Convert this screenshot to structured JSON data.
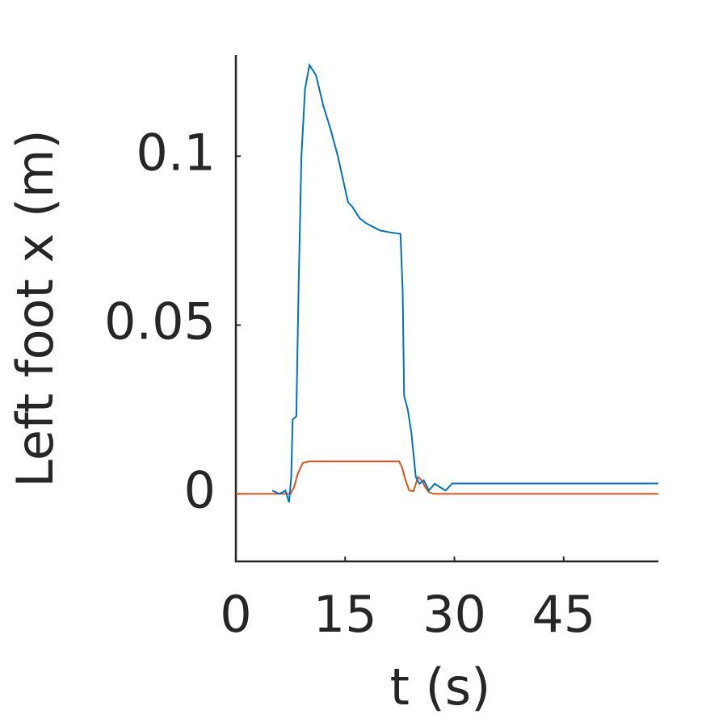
{
  "chart_data": {
    "type": "line",
    "xlabel": "t (s)",
    "ylabel": "Left foot x (m)",
    "xlim": [
      0,
      58
    ],
    "ylim": [
      -0.02,
      0.13
    ],
    "xticks": [
      0,
      15,
      30,
      45
    ],
    "yticks": [
      0,
      0.05,
      0.1
    ],
    "series": [
      {
        "color": "#0072bd",
        "x": [
          5,
          6,
          6.8,
          7.3,
          7.6,
          7.8,
          8.3,
          8.6,
          9,
          9.5,
          10.1,
          11,
          12,
          13,
          14,
          15.4,
          16,
          17,
          18,
          19.8,
          21,
          22.6,
          22.9,
          23.1,
          23.6,
          24.1,
          24.7,
          25.2,
          25.8,
          26.5,
          27.3,
          28,
          28.8,
          29.7,
          58
        ],
        "values": [
          0.001,
          0,
          0.001,
          -0.0025,
          0.005,
          0.022,
          0.023,
          0.06,
          0.1,
          0.12,
          0.127,
          0.124,
          0.115,
          0.108,
          0.1,
          0.0864,
          0.085,
          0.0816,
          0.08,
          0.078,
          0.0775,
          0.077,
          0.06,
          0.029,
          0.025,
          0.018,
          0.005,
          0.003,
          0.004,
          0.001,
          0.003,
          0.002,
          0.001,
          0.0031,
          0.0031
        ]
      },
      {
        "color": "#d95319",
        "x": [
          0,
          7.5,
          8,
          8.5,
          9.2,
          10,
          22.4,
          22.8,
          23.3,
          23.8,
          24.4,
          25,
          25.5,
          26,
          26.5,
          27.2,
          58
        ],
        "values": [
          0,
          0,
          0.002,
          0.006,
          0.0092,
          0.0096,
          0.0096,
          0.008,
          0.004,
          0.001,
          0.0008,
          0.005,
          0.004,
          0.002,
          0.0005,
          0,
          0
        ]
      }
    ]
  }
}
